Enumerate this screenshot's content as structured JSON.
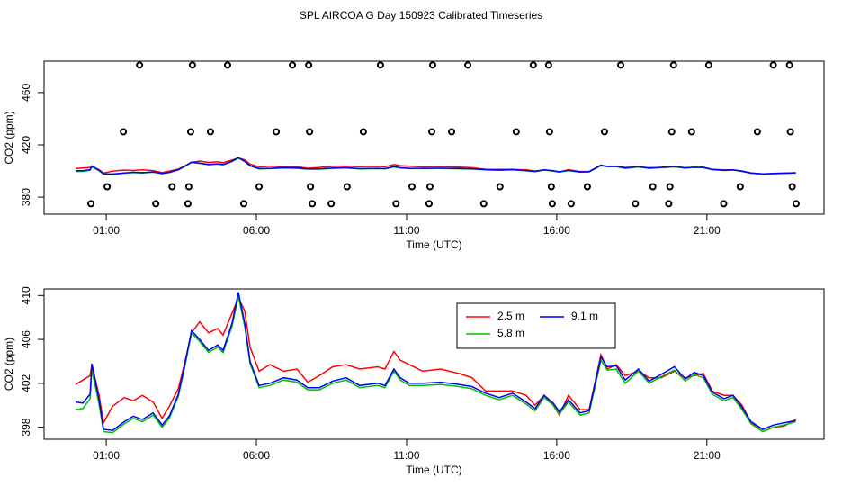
{
  "title": "SPL AIRCOA G  Day 150923  Calibrated Timeseries",
  "chart_data": [
    {
      "type": "line",
      "xlabel": "Time (UTC)",
      "ylabel": "CO2 (ppm)",
      "xlim": [
        -1.07,
        24.9
      ],
      "ylim": [
        367,
        484
      ],
      "xticks": [
        {
          "value": 1,
          "label": "01:00"
        },
        {
          "value": 6,
          "label": "06:00"
        },
        {
          "value": 11,
          "label": "11:00"
        },
        {
          "value": 16,
          "label": "16:00"
        },
        {
          "value": 21,
          "label": "21:00"
        }
      ],
      "yticks": [
        380,
        420,
        460
      ],
      "x": [
        -0.02,
        0.22,
        0.46,
        0.52,
        0.76,
        0.91,
        1.21,
        1.6,
        1.9,
        2.2,
        2.56,
        2.86,
        3.1,
        3.4,
        3.6,
        3.84,
        4.11,
        4.41,
        4.71,
        4.89,
        5.19,
        5.4,
        5.61,
        5.79,
        6.09,
        6.45,
        6.9,
        7.35,
        7.71,
        8.1,
        8.54,
        8.99,
        9.44,
        10.04,
        10.28,
        10.58,
        10.79,
        11.09,
        11.54,
        12.14,
        12.74,
        13.18,
        13.63,
        14.08,
        14.53,
        14.98,
        15.28,
        15.58,
        15.88,
        16.09,
        16.39,
        16.78,
        17.08,
        17.47,
        17.68,
        17.98,
        18.28,
        18.72,
        19.08,
        19.47,
        19.92,
        20.28,
        20.58,
        20.88,
        21.18,
        21.57,
        21.87,
        22.17,
        22.47,
        22.86,
        23.22,
        23.57,
        23.96
      ],
      "series": [
        {
          "name": "2.5 m",
          "color": "#ff0000",
          "values": [
            401.9,
            402.3,
            402.7,
            403.7,
            400.9,
            398.4,
            399.9,
            400.7,
            400.4,
            400.9,
            400.3,
            398.8,
            399.9,
            401.5,
            403.7,
            406.6,
            407.6,
            406.6,
            407.0,
            406.4,
            408.4,
            409.8,
            408.6,
            405.3,
            403.1,
            403.7,
            403.1,
            403.3,
            402.1,
            402.7,
            403.5,
            403.7,
            403.3,
            403.5,
            403.3,
            404.9,
            404.1,
            403.7,
            403.1,
            403.3,
            402.9,
            402.5,
            401.3,
            401.3,
            401.3,
            400.9,
            400.0,
            400.9,
            400.0,
            399.1,
            400.9,
            399.6,
            399.6,
            404.6,
            403.3,
            403.7,
            402.7,
            403.1,
            402.5,
            402.5,
            403.1,
            402.5,
            402.7,
            402.9,
            401.3,
            400.9,
            400.9,
            400.0,
            398.4,
            397.6,
            398.0,
            398.1,
            398.7
          ]
        },
        {
          "name": "5.8 m",
          "color": "#00c000",
          "values": [
            399.6,
            399.7,
            400.6,
            403.2,
            400.1,
            397.6,
            397.5,
            398.3,
            398.8,
            398.5,
            399.1,
            398.0,
            398.8,
            400.8,
            403.3,
            406.6,
            405.8,
            404.8,
            405.3,
            404.8,
            407.2,
            409.9,
            407.2,
            403.8,
            401.6,
            401.8,
            402.3,
            402.1,
            401.4,
            401.4,
            402.0,
            402.3,
            401.6,
            401.8,
            401.6,
            403.1,
            402.3,
            401.8,
            401.8,
            401.9,
            401.7,
            401.5,
            400.9,
            400.5,
            400.9,
            400.1,
            399.5,
            400.7,
            400.0,
            399.2,
            400.3,
            399.1,
            399.3,
            404.1,
            403.2,
            403.3,
            402.0,
            403.1,
            402.0,
            402.6,
            403.2,
            402.2,
            402.8,
            402.5,
            401.0,
            400.4,
            400.7,
            399.6,
            398.3,
            397.6,
            398.0,
            398.2,
            398.5
          ]
        },
        {
          "name": "9.1 m",
          "color": "#0000ff",
          "values": [
            400.3,
            400.2,
            401.0,
            403.8,
            400.5,
            397.8,
            397.7,
            398.5,
            399.0,
            398.7,
            399.3,
            398.2,
            399.0,
            401.0,
            403.5,
            406.8,
            406.0,
            405.0,
            405.5,
            405.0,
            407.5,
            410.3,
            407.5,
            404.0,
            401.8,
            402.0,
            402.5,
            402.3,
            401.6,
            401.6,
            402.2,
            402.5,
            401.8,
            402.0,
            401.8,
            403.3,
            402.5,
            402.0,
            402.0,
            402.1,
            401.9,
            401.7,
            401.1,
            400.7,
            401.1,
            400.3,
            399.7,
            400.9,
            400.2,
            399.4,
            400.5,
            399.3,
            399.5,
            404.4,
            403.5,
            403.6,
            402.3,
            403.3,
            402.2,
            402.8,
            403.5,
            402.4,
            403.0,
            402.7,
            401.2,
            400.6,
            400.9,
            399.8,
            398.5,
            397.8,
            398.2,
            398.4,
            398.6
          ]
        }
      ],
      "points": {
        "color": "#000000",
        "x": [
          2.11,
          3.87,
          5.04,
          7.2,
          7.74,
          10.13,
          11.87,
          13.04,
          15.22,
          15.73,
          18.13,
          19.89,
          21.06,
          23.21,
          23.75,
          1.57,
          3.81,
          4.47,
          6.66,
          7.77,
          9.56,
          11.84,
          12.5,
          14.65,
          15.76,
          17.59,
          19.83,
          20.49,
          22.68,
          23.78,
          1.03,
          3.19,
          3.75,
          6.09,
          7.8,
          9.02,
          11.18,
          11.78,
          14.11,
          15.82,
          17.02,
          19.2,
          19.77,
          22.11,
          23.84,
          0.49,
          2.65,
          3.72,
          5.58,
          7.86,
          8.49,
          10.65,
          11.75,
          13.57,
          15.85,
          16.48,
          18.62,
          19.73,
          21.56,
          23.97
        ],
        "y": [
          481,
          481,
          481,
          481,
          481,
          481,
          481,
          481,
          481,
          481,
          481,
          481,
          481,
          481,
          481,
          430,
          430,
          430,
          430,
          430,
          430,
          430,
          430,
          430,
          430,
          430,
          430,
          430,
          430,
          430,
          388,
          388,
          388,
          388,
          388,
          388,
          388,
          388,
          388,
          388,
          388,
          388,
          388,
          388,
          388,
          375,
          375,
          375,
          375,
          375,
          375,
          375,
          375,
          375,
          375,
          375,
          375,
          375,
          375,
          375
        ]
      }
    },
    {
      "type": "line",
      "xlabel": "Time (UTC)",
      "ylabel": "CO2 (ppm)",
      "xlim": [
        -1.07,
        24.9
      ],
      "ylim": [
        396.9,
        410.6
      ],
      "xticks": [
        {
          "value": 1,
          "label": "01:00"
        },
        {
          "value": 6,
          "label": "06:00"
        },
        {
          "value": 11,
          "label": "11:00"
        },
        {
          "value": 16,
          "label": "16:00"
        },
        {
          "value": 21,
          "label": "21:00"
        }
      ],
      "yticks": [
        398,
        402,
        406,
        410
      ],
      "legend": "top",
      "x": [
        -0.02,
        0.22,
        0.46,
        0.52,
        0.76,
        0.91,
        1.21,
        1.6,
        1.9,
        2.2,
        2.56,
        2.86,
        3.1,
        3.4,
        3.6,
        3.84,
        4.11,
        4.41,
        4.71,
        4.89,
        5.19,
        5.4,
        5.61,
        5.79,
        6.09,
        6.45,
        6.9,
        7.35,
        7.71,
        8.1,
        8.54,
        8.99,
        9.44,
        10.04,
        10.28,
        10.58,
        10.79,
        11.09,
        11.54,
        12.14,
        12.74,
        13.18,
        13.63,
        14.08,
        14.53,
        14.98,
        15.28,
        15.58,
        15.88,
        16.09,
        16.39,
        16.78,
        17.08,
        17.47,
        17.68,
        17.98,
        18.28,
        18.72,
        19.08,
        19.47,
        19.92,
        20.28,
        20.58,
        20.88,
        21.18,
        21.57,
        21.87,
        22.17,
        22.47,
        22.86,
        23.22,
        23.57,
        23.96
      ],
      "series": [
        {
          "name": "2.5 m",
          "color": "#ff0000",
          "values": [
            401.9,
            402.3,
            402.7,
            403.7,
            400.9,
            398.4,
            399.9,
            400.7,
            400.4,
            400.9,
            400.3,
            398.8,
            399.9,
            401.5,
            403.7,
            406.6,
            407.6,
            406.6,
            407.0,
            406.4,
            408.4,
            409.8,
            408.6,
            405.3,
            403.1,
            403.7,
            403.1,
            403.3,
            402.1,
            402.7,
            403.5,
            403.7,
            403.3,
            403.5,
            403.3,
            404.9,
            404.1,
            403.7,
            403.1,
            403.3,
            402.9,
            402.5,
            401.3,
            401.3,
            401.3,
            400.9,
            400.0,
            400.9,
            400.0,
            399.1,
            400.9,
            399.6,
            399.6,
            404.6,
            403.3,
            403.7,
            402.7,
            403.1,
            402.5,
            402.5,
            403.1,
            402.5,
            402.7,
            402.9,
            401.3,
            400.9,
            400.9,
            400.0,
            398.4,
            397.6,
            398.0,
            398.1,
            398.7
          ]
        },
        {
          "name": "5.8 m",
          "color": "#00c000",
          "values": [
            399.6,
            399.7,
            400.6,
            403.2,
            400.1,
            397.6,
            397.5,
            398.3,
            398.8,
            398.5,
            399.1,
            398.0,
            398.8,
            400.8,
            403.3,
            406.6,
            405.8,
            404.8,
            405.3,
            404.8,
            407.2,
            409.9,
            407.2,
            403.8,
            401.6,
            401.8,
            402.3,
            402.1,
            401.4,
            401.4,
            402.0,
            402.3,
            401.6,
            401.8,
            401.6,
            403.1,
            402.3,
            401.8,
            401.8,
            401.9,
            401.7,
            401.5,
            400.9,
            400.5,
            400.9,
            400.1,
            399.5,
            400.7,
            400.0,
            399.2,
            400.3,
            399.1,
            399.3,
            404.1,
            403.2,
            403.3,
            402.0,
            403.1,
            402.0,
            402.6,
            403.2,
            402.2,
            402.8,
            402.5,
            401.0,
            400.4,
            400.7,
            399.6,
            398.3,
            397.6,
            398.0,
            398.2,
            398.5
          ]
        },
        {
          "name": "9.1 m",
          "color": "#0000ff",
          "values": [
            400.3,
            400.2,
            401.0,
            403.8,
            400.5,
            397.8,
            397.7,
            398.5,
            399.0,
            398.7,
            399.3,
            398.2,
            399.0,
            401.0,
            403.5,
            406.8,
            406.0,
            405.0,
            405.5,
            405.0,
            407.5,
            410.3,
            407.5,
            404.0,
            401.8,
            402.0,
            402.5,
            402.3,
            401.6,
            401.6,
            402.2,
            402.5,
            401.8,
            402.0,
            401.8,
            403.3,
            402.5,
            402.0,
            402.0,
            402.1,
            401.9,
            401.7,
            401.1,
            400.7,
            401.1,
            400.3,
            399.7,
            400.9,
            400.2,
            399.4,
            400.5,
            399.3,
            399.5,
            404.4,
            403.5,
            403.6,
            402.3,
            403.3,
            402.2,
            402.8,
            403.5,
            402.4,
            403.0,
            402.7,
            401.2,
            400.6,
            400.9,
            399.8,
            398.5,
            397.8,
            398.2,
            398.4,
            398.6
          ]
        }
      ]
    }
  ]
}
